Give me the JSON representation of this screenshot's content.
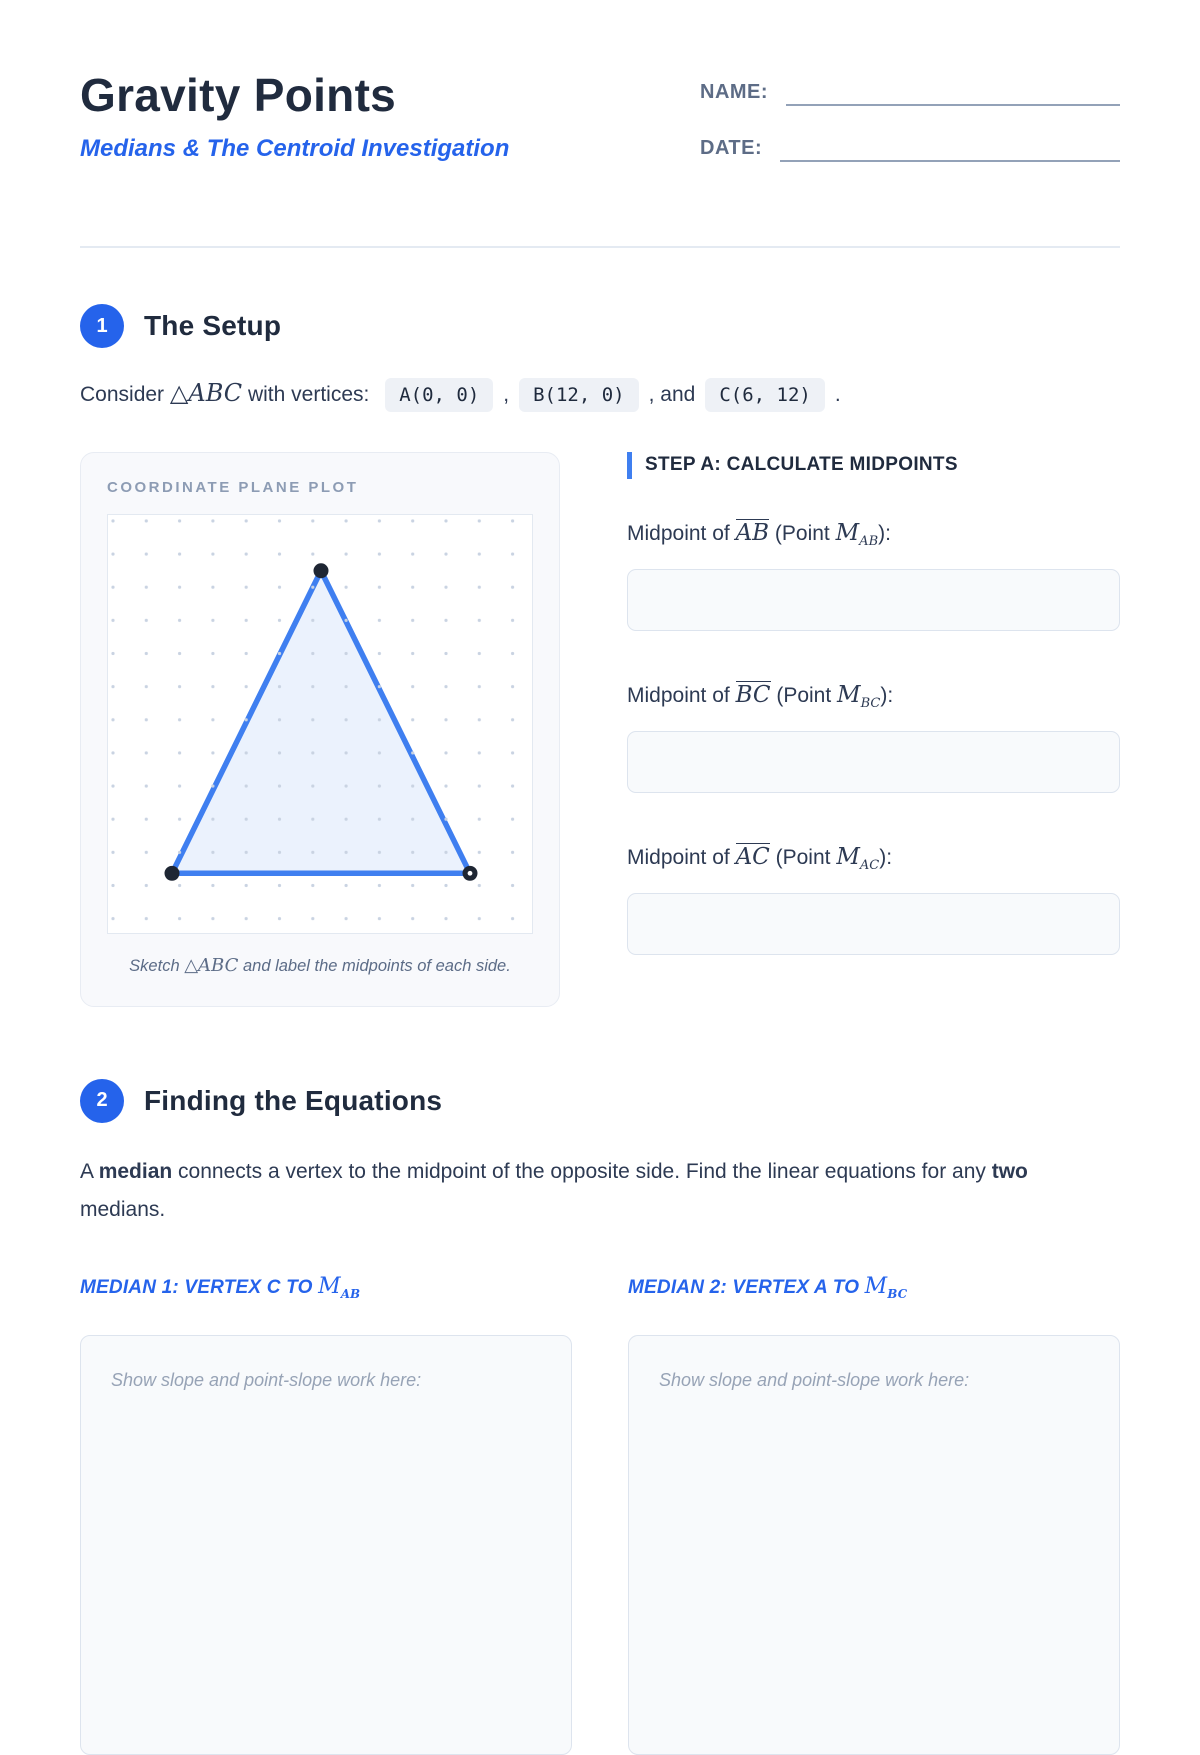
{
  "colors": {
    "accent": "#2563eb",
    "heading": "#202b3e",
    "triangle_stroke": "#3f7ff0",
    "triangle_fill": "rgba(63,127,240,0.10)",
    "vertex_dot": "#1e2633",
    "grid_dot": "#c9d3e2"
  },
  "header": {
    "title": "Gravity Points",
    "subtitle": "Medians & The Centroid Investigation",
    "name_label": "NAME:",
    "date_label": "DATE:",
    "name_value": "",
    "date_value": ""
  },
  "section1": {
    "badge": "1",
    "heading": "The Setup",
    "intro": {
      "prefix": "Consider ",
      "tri": "△",
      "tri_name": "ABC",
      "middle": " with vertices: ",
      "chips": [
        "A(0, 0)",
        "B(12, 0)",
        "C(6, 12)"
      ],
      "sep1": ",",
      "sep2": ", and",
      "end": "."
    },
    "plot_card": {
      "label": "COORDINATE PLANE PLOT",
      "vertices": {
        "A": [
          0,
          0
        ],
        "B": [
          12,
          0
        ],
        "C": [
          6,
          12
        ]
      },
      "caption": {
        "prefix": "Sketch ",
        "math_tri": "△",
        "math_name": "ABC",
        "suffix": " and label the midpoints of each side."
      }
    },
    "step_a": {
      "heading": "STEP A: CALCULATE MIDPOINTS",
      "items": [
        {
          "prefix": "Midpoint of ",
          "seg": "AB",
          "mid": " (Point ",
          "m": "M",
          "sub": "AB",
          "suffix": "):"
        },
        {
          "prefix": "Midpoint of ",
          "seg": "BC",
          "mid": " (Point ",
          "m": "M",
          "sub": "BC",
          "suffix": "):"
        },
        {
          "prefix": "Midpoint of ",
          "seg": "AC",
          "mid": " (Point ",
          "m": "M",
          "sub": "AC",
          "suffix": "):"
        }
      ],
      "answers": [
        "",
        "",
        ""
      ]
    }
  },
  "section2": {
    "badge": "2",
    "heading": "Finding the Equations",
    "para": [
      {
        "t": "A "
      },
      {
        "t": "median"
      },
      {
        "t": " connects a vertex to the midpoint of the opposite side. Find the linear equations for any "
      },
      {
        "t": "two"
      },
      {
        "t": " medians."
      }
    ],
    "medians": [
      {
        "title": "MEDIAN 1: VERTEX C TO ",
        "m": "M",
        "sub": "AB",
        "placeholder": "Show slope and point-slope work here:",
        "work": ""
      },
      {
        "title": "MEDIAN 2: VERTEX A TO ",
        "m": "M",
        "sub": "BC",
        "placeholder": "Show slope and point-slope work here:",
        "work": ""
      }
    ]
  }
}
